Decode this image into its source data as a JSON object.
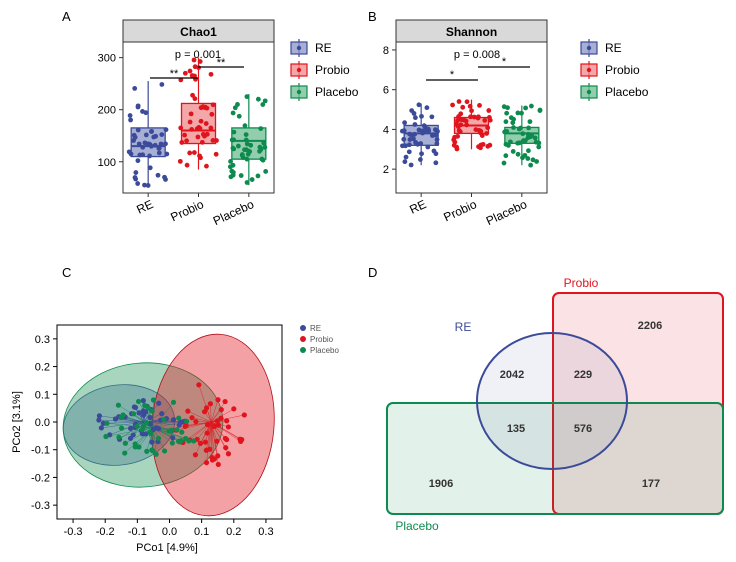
{
  "colors": {
    "re": "#3b4a99",
    "probio": "#e0141d",
    "placebo": "#0e8a4e",
    "re_fill": "#8a94c6",
    "probio_fill": "#f08a8c",
    "placebo_fill": "#6dbd91"
  },
  "panel_letters": {
    "a": "A",
    "b": "B",
    "c": "C",
    "d": "D"
  },
  "chart_data": [
    {
      "type": "box",
      "panel": "A",
      "title": "Chao1",
      "categories": [
        "RE",
        "Probio",
        "Placebo"
      ],
      "yticks": [
        100,
        200,
        300
      ],
      "ylim": [
        40,
        330
      ],
      "stats": [
        {
          "name": "RE",
          "whisker_low": 50,
          "q1": 110,
          "median": 130,
          "q3": 165,
          "whisker_high": 255
        },
        {
          "name": "Probio",
          "whisker_low": 85,
          "q1": 135,
          "median": 160,
          "q3": 212,
          "whisker_high": 300
        },
        {
          "name": "Placebo",
          "whisker_low": 55,
          "q1": 105,
          "median": 140,
          "q3": 165,
          "whisker_high": 230
        }
      ],
      "pvalue": "p = 0.001",
      "sig": [
        "**",
        "**"
      ],
      "legend": [
        "RE",
        "Probio",
        "Placebo"
      ]
    },
    {
      "type": "box",
      "panel": "B",
      "title": "Shannon",
      "categories": [
        "RE",
        "Probio",
        "Placebo"
      ],
      "yticks": [
        2,
        4,
        6,
        8
      ],
      "ylim": [
        0.8,
        8.4
      ],
      "stats": [
        {
          "name": "RE",
          "whisker_low": 2.2,
          "q1": 3.2,
          "median": 3.8,
          "q3": 4.2,
          "whisker_high": 5.3
        },
        {
          "name": "Probio",
          "whisker_low": 3.0,
          "q1": 3.8,
          "median": 4.2,
          "q3": 4.6,
          "whisker_high": 5.5
        },
        {
          "name": "Placebo",
          "whisker_low": 2.2,
          "q1": 3.3,
          "median": 3.8,
          "q3": 4.1,
          "whisker_high": 5.2
        }
      ],
      "pvalue": "p = 0.008",
      "sig": [
        "*",
        "*"
      ],
      "legend": [
        "RE",
        "Probio",
        "Placebo"
      ]
    },
    {
      "type": "scatter",
      "panel": "C",
      "xlabel": "PCo1 [4.9%]",
      "ylabel": "PCo2 [3.1%]",
      "xlim": [
        -0.35,
        0.35
      ],
      "ylim": [
        -0.35,
        0.35
      ],
      "xticks": [
        -0.3,
        -0.2,
        -0.1,
        0.0,
        0.1,
        0.2,
        0.3
      ],
      "yticks": [
        -0.3,
        -0.2,
        -0.1,
        0.0,
        0.1,
        0.2,
        0.3
      ],
      "xtick_labels": [
        "-0.3",
        "-0.2",
        "-0.1",
        "0.0",
        "0.1",
        "0.2",
        "0.3"
      ],
      "ytick_labels": [
        "-0.3",
        "-0.2",
        "-0.1",
        "0.0",
        "0.1",
        "0.2",
        "0.3"
      ],
      "centroids": {
        "RE": [
          -0.08,
          0.0
        ],
        "Probio": [
          0.13,
          0.0
        ],
        "Placebo": [
          -0.05,
          -0.02
        ]
      },
      "legend": [
        "RE",
        "Probio",
        "Placebo"
      ]
    },
    {
      "type": "venn",
      "panel": "D",
      "sets": [
        "RE",
        "Probio",
        "Placebo"
      ],
      "counts": {
        "re_only": "2042",
        "re_probio": "229",
        "probio_only": "2206",
        "re_placebo": "135",
        "all_three": "576",
        "placebo_only": "1906",
        "probio_placebo": "177"
      }
    }
  ]
}
